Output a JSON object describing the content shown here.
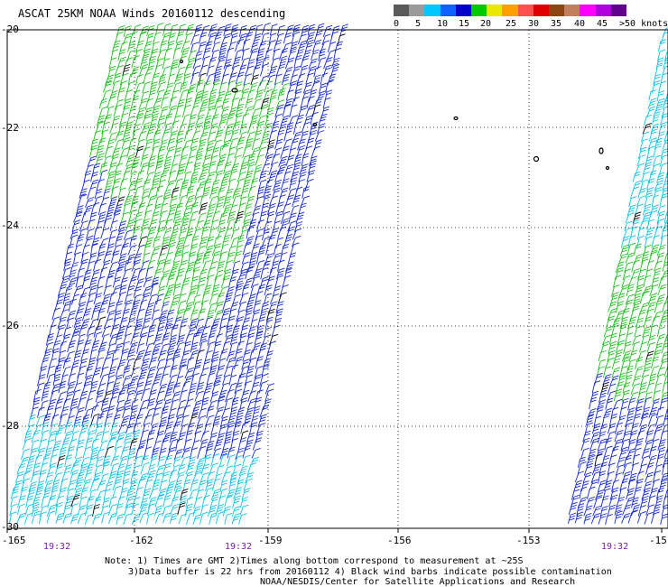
{
  "title": "ASCAT 25KM NOAA Winds 20160112 descending",
  "legend": {
    "colors": [
      "#5a5a5a",
      "#9a9a9a",
      "#00c8ff",
      "#1060ff",
      "#0000c8",
      "#00c800",
      "#e8e800",
      "#ffa000",
      "#ff5050",
      "#e00000",
      "#8b4513",
      "#c08060",
      "#ff00ff",
      "#b000e0",
      "#600090"
    ],
    "labels": [
      "0",
      "5",
      "10",
      "15",
      "20",
      "25",
      "30",
      "35",
      "40",
      "45",
      ">50 knots"
    ]
  },
  "lat_labels": [
    "-20",
    "-22",
    "-24",
    "-26",
    "-28",
    "-30"
  ],
  "lon_labels": [
    "-165",
    "-162",
    "-159",
    "-156",
    "-153",
    "-15"
  ],
  "time_labels": [
    "19:32",
    "19:32",
    "19:32"
  ],
  "notes": [
    "Note: 1) Times are GMT 2)Times along bottom correspond to measurement at ~25S",
    "3)Data buffer is 22 hrs from 20160112 4) Black wind barbs indicate possible contamination",
    "NOAA/NESDIS/Center for Satellite Applications and Research"
  ],
  "colors": {
    "green": "#20c020",
    "blue": "#1428c8",
    "cyan": "#10c0e8",
    "black": "#000000",
    "grid": "#000000",
    "time": "#7a1fa0"
  }
}
